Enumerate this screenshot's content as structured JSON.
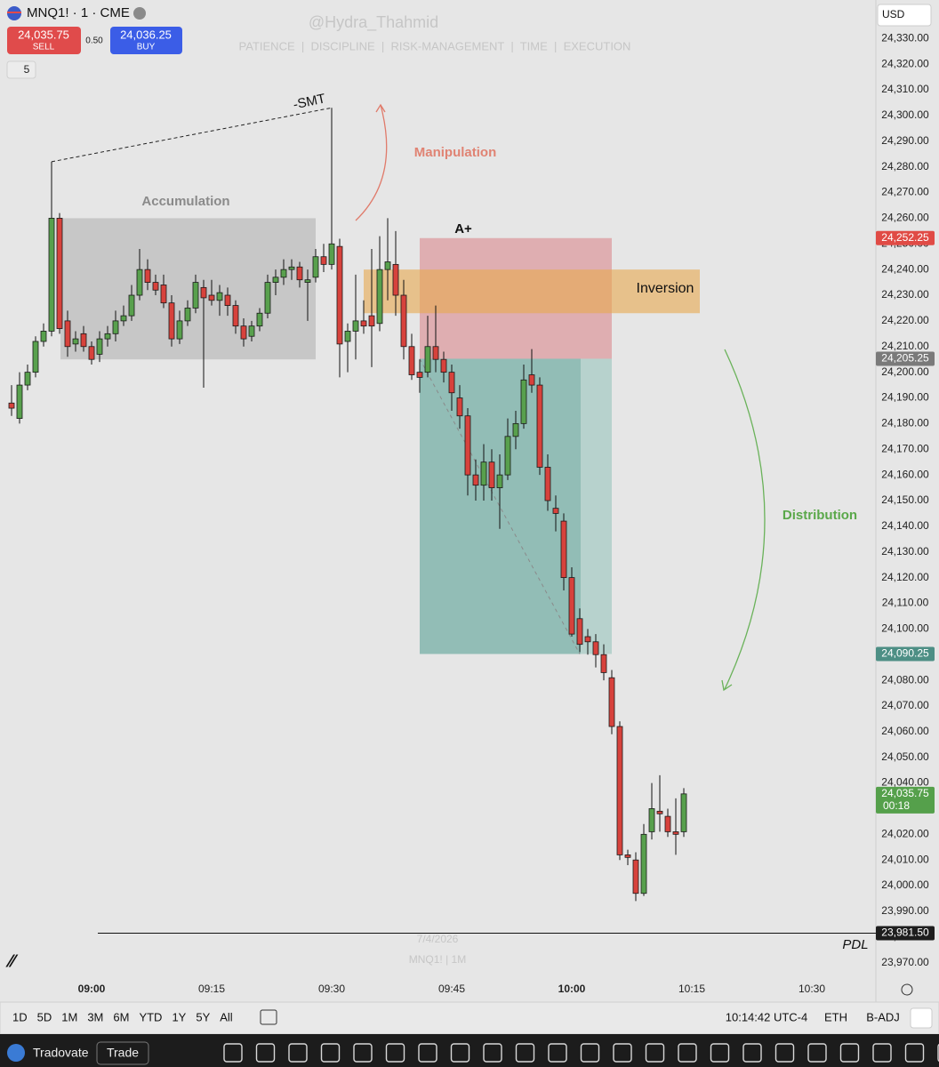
{
  "header": {
    "symbol": "MNQ1! · 1 · CME",
    "sell_price": "24,035.75",
    "sell_label": "SELL",
    "spread": "0.50",
    "buy_price": "24,036.25",
    "buy_label": "BUY",
    "indicator_count": "5",
    "currency": "USD"
  },
  "watermark": {
    "handle": "@Hydra_Thahmid",
    "motto": "PATIENCE  |  DISCIPLINE  |  RISK-MANAGEMENT  |  TIME  |  EXECUTION",
    "date": "7/4/2026",
    "symbol": "MNQ1! | 1M"
  },
  "chart_data": {
    "type": "candlestick",
    "x": [
      "08:50",
      "08:51",
      "08:52",
      "08:53",
      "08:54",
      "08:55",
      "08:56",
      "08:57",
      "08:58",
      "08:59",
      "09:00",
      "09:01",
      "09:02",
      "09:03",
      "09:04",
      "09:05",
      "09:06",
      "09:07",
      "09:08",
      "09:09",
      "09:10",
      "09:11",
      "09:12",
      "09:13",
      "09:14",
      "09:15",
      "09:16",
      "09:17",
      "09:18",
      "09:19",
      "09:20",
      "09:21",
      "09:22",
      "09:23",
      "09:24",
      "09:25",
      "09:26",
      "09:27",
      "09:28",
      "09:29",
      "09:30",
      "09:31",
      "09:32",
      "09:33",
      "09:34",
      "09:35",
      "09:36",
      "09:37",
      "09:38",
      "09:39",
      "09:40",
      "09:41",
      "09:42",
      "09:43",
      "09:44",
      "09:45",
      "09:46",
      "09:47",
      "09:48",
      "09:49",
      "09:50",
      "09:51",
      "09:52",
      "09:53",
      "09:54",
      "09:55",
      "09:56",
      "09:57",
      "09:58",
      "09:59",
      "10:00",
      "10:01",
      "10:02",
      "10:03",
      "10:04",
      "10:05",
      "10:06",
      "10:07",
      "10:08",
      "10:09",
      "10:10",
      "10:11",
      "10:12",
      "10:13",
      "10:14"
    ],
    "open": [
      24188,
      24182,
      24195,
      24200,
      24212,
      24216,
      24260,
      24220,
      24211,
      24215,
      24210,
      24207,
      24213,
      24215,
      24220,
      24222,
      24230,
      24240,
      24235,
      24234,
      24227,
      24213,
      24220,
      24225,
      24233,
      24230,
      24228,
      24230,
      24226,
      24218,
      24214,
      24218,
      24223,
      24235,
      24237,
      24240,
      24241,
      24235,
      24237,
      24245,
      24242,
      24249,
      24212,
      24216,
      24220,
      24222,
      24219,
      24240,
      24242,
      24230,
      24210,
      24200,
      24200,
      24210,
      24205,
      24200,
      24190,
      24183,
      24160,
      24156,
      24165,
      24155,
      24160,
      24175,
      24180,
      24199,
      24195,
      24163,
      24147,
      24142,
      24120,
      24104,
      24097,
      24095,
      24090,
      24081,
      24062,
      24012,
      24010,
      23997,
      24021,
      24029,
      24027,
      24021,
      24021
    ],
    "high": [
      24195,
      24200,
      24203,
      24214,
      24219,
      24282,
      24262,
      24224,
      24216,
      24218,
      24212,
      24216,
      24218,
      24224,
      24226,
      24234,
      24248,
      24244,
      24238,
      24238,
      24230,
      24224,
      24228,
      24238,
      24236,
      24236,
      24234,
      24233,
      24228,
      24221,
      24220,
      24225,
      24238,
      24240,
      24244,
      24244,
      24243,
      24240,
      24248,
      24250,
      24303,
      24252,
      24219,
      24238,
      24228,
      24248,
      24253,
      24260,
      24255,
      24236,
      24215,
      24205,
      24222,
      24226,
      24208,
      24203,
      24195,
      24186,
      24166,
      24172,
      24170,
      24168,
      24182,
      24185,
      24203,
      24209,
      24198,
      24168,
      24152,
      24145,
      24124,
      24108,
      24100,
      24098,
      24094,
      24084,
      24064,
      24014,
      24013,
      24024,
      24040,
      24043,
      24030,
      24034,
      24038
    ],
    "low": [
      24183,
      24180,
      24193,
      24198,
      24210,
      24214,
      24215,
      24206,
      24208,
      24208,
      24203,
      24204,
      24210,
      24212,
      24218,
      24220,
      24228,
      24232,
      24230,
      24225,
      24210,
      24211,
      24218,
      24223,
      24194,
      24226,
      24222,
      24222,
      24215,
      24210,
      24212,
      24216,
      24221,
      24230,
      24234,
      24236,
      24233,
      24220,
      24235,
      24239,
      24240,
      24198,
      24200,
      24205,
      24215,
      24202,
      24216,
      24228,
      24222,
      24205,
      24197,
      24192,
      24198,
      24200,
      24196,
      24185,
      24178,
      24152,
      24150,
      24150,
      24150,
      24139,
      24158,
      24170,
      24178,
      24192,
      24160,
      24146,
      24138,
      24115,
      24097,
      24091,
      24090,
      24085,
      24080,
      24059,
      24010,
      24008,
      23994,
      23996,
      24018,
      24021,
      24019,
      24012,
      24019
    ],
    "close": [
      24186,
      24195,
      24200,
      24212,
      24216,
      24260,
      24217,
      24210,
      24213,
      24210,
      24205,
      24213,
      24215,
      24220,
      24222,
      24230,
      24240,
      24235,
      24232,
      24227,
      24213,
      24220,
      24225,
      24235,
      24229,
      24228,
      24231,
      24226,
      24218,
      24213,
      24218,
      24223,
      24235,
      24237,
      24240,
      24241,
      24236,
      24236,
      24245,
      24242,
      24250,
      24211,
      24216,
      24220,
      24218,
      24218,
      24240,
      24243,
      24230,
      24210,
      24199,
      24198,
      24210,
      24205,
      24200,
      24192,
      24183,
      24160,
      24156,
      24165,
      24155,
      24160,
      24175,
      24180,
      24197,
      24195,
      24163,
      24150,
      24145,
      24120,
      24098,
      24094,
      24095,
      24090,
      24083,
      24062,
      24012,
      24011,
      23997,
      24020,
      24030,
      24028,
      24021,
      24020,
      24035.75
    ],
    "up_color": "#58a04d",
    "down_color": "#d7423c",
    "ylim": [
      23964,
      24345
    ],
    "yticks": [
      {
        "value": 24330,
        "label": "24,330.00"
      },
      {
        "value": 24320,
        "label": "24,320.00"
      },
      {
        "value": 24310,
        "label": "24,310.00"
      },
      {
        "value": 24300,
        "label": "24,300.00"
      },
      {
        "value": 24290,
        "label": "24,290.00"
      },
      {
        "value": 24280,
        "label": "24,280.00"
      },
      {
        "value": 24270,
        "label": "24,270.00"
      },
      {
        "value": 24260,
        "label": "24,260.00"
      },
      {
        "value": 24250,
        "label": "24,250.00"
      },
      {
        "value": 24240,
        "label": "24,240.00"
      },
      {
        "value": 24230,
        "label": "24,230.00"
      },
      {
        "value": 24220,
        "label": "24,220.00"
      },
      {
        "value": 24210,
        "label": "24,210.00"
      },
      {
        "value": 24200,
        "label": "24,200.00"
      },
      {
        "value": 24190,
        "label": "24,190.00"
      },
      {
        "value": 24180,
        "label": "24,180.00"
      },
      {
        "value": 24170,
        "label": "24,170.00"
      },
      {
        "value": 24160,
        "label": "24,160.00"
      },
      {
        "value": 24150,
        "label": "24,150.00"
      },
      {
        "value": 24140,
        "label": "24,140.00"
      },
      {
        "value": 24130,
        "label": "24,130.00"
      },
      {
        "value": 24120,
        "label": "24,120.00"
      },
      {
        "value": 24110,
        "label": "24,110.00"
      },
      {
        "value": 24100,
        "label": "24,100.00"
      },
      {
        "value": 24090,
        "label": "24,090.00"
      },
      {
        "value": 24080,
        "label": "24,080.00"
      },
      {
        "value": 24070,
        "label": "24,070.00"
      },
      {
        "value": 24060,
        "label": "24,060.00"
      },
      {
        "value": 24050,
        "label": "24,050.00"
      },
      {
        "value": 24040,
        "label": "24,040.00"
      },
      {
        "value": 24030,
        "label": "24,030.00"
      },
      {
        "value": 24020,
        "label": "24,020.00"
      },
      {
        "value": 24010,
        "label": "24,010.00"
      },
      {
        "value": 24000,
        "label": "24,000.00"
      },
      {
        "value": 23990,
        "label": "23,990.00"
      },
      {
        "value": 23980,
        "label": "23,980.00"
      },
      {
        "value": 23970,
        "label": "23,970.00"
      }
    ],
    "xticks": [
      "09:00",
      "09:15",
      "09:30",
      "09:45",
      "10:00",
      "10:15",
      "10:30"
    ],
    "annotations": [
      "Accumulation",
      "Manipulation",
      "A+",
      "Inversion",
      "Distribution",
      "-SMT"
    ],
    "accumulation_zone": [
      24205,
      24260
    ],
    "inversion_zone": [
      24223,
      24240
    ],
    "levels": [
      {
        "value": 24252.25,
        "label": "24,252.25",
        "color": "#e04b45"
      },
      {
        "value": 24205.25,
        "label": "24,205.25",
        "color": "#7a7a7a"
      },
      {
        "value": 24090.25,
        "label": "24,090.25",
        "color": "#4d8f85"
      }
    ],
    "last_price": {
      "value": 24035.75,
      "label": "24,035.75",
      "countdown": "00:18",
      "color": "#55a04b"
    },
    "pdl": {
      "text": "PDL",
      "value": 23981.5,
      "label": "23,981.50"
    }
  },
  "footer": {
    "ranges": [
      "1D",
      "5D",
      "1M",
      "3M",
      "6M",
      "YTD",
      "1Y",
      "5Y",
      "All"
    ],
    "time": "10:14:42 UTC-4",
    "session": "ETH",
    "adjust": "B-ADJ"
  },
  "toolbar": {
    "broker": "Tradovate",
    "action": "Trade"
  }
}
